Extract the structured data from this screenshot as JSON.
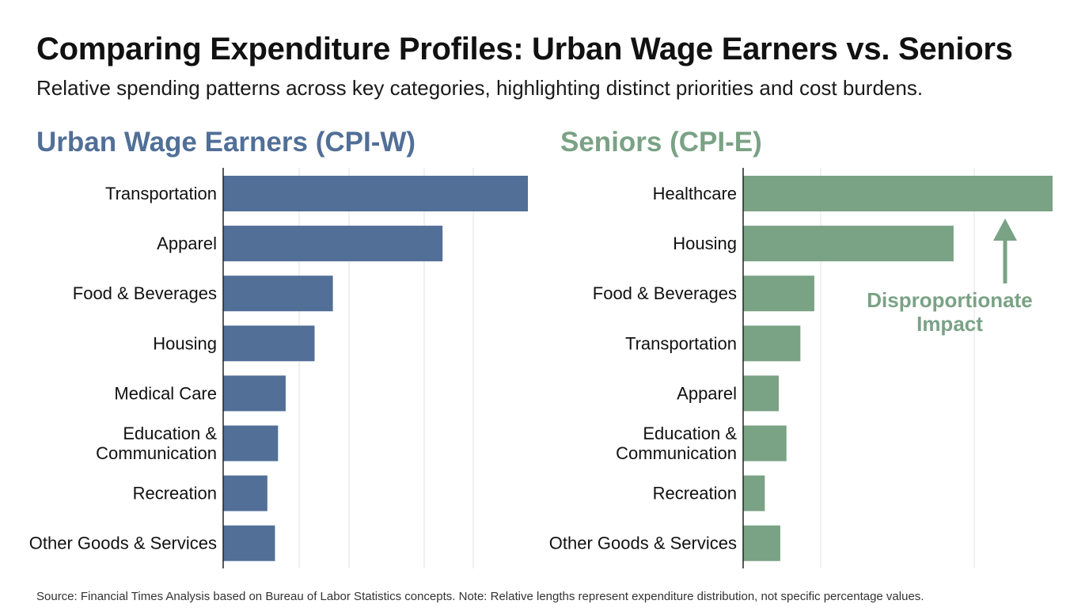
{
  "title": "Comparing Expenditure Profiles: Urban Wage Earners vs. Seniors",
  "subtitle": "Relative spending patterns across key categories, highlighting distinct priorities and cost burdens.",
  "source": "Source: Financial Times Analysis based on Bureau of Labor Statistics concepts. Note: Relative lengths represent expenditure distribution, not specific percentage values.",
  "colors": {
    "cpi_w": "#516f97",
    "cpi_e": "#7aa285",
    "grid": "#e2e2e2",
    "axis": "#222222"
  },
  "annotation": {
    "line1": "Disproportionate",
    "line2": "Impact",
    "icon": "arrow-up-icon"
  },
  "chart_data": [
    {
      "type": "bar",
      "orientation": "horizontal",
      "title": "Urban Wage Earners (CPI-W)",
      "categories": [
        "Transportation",
        "Apparel",
        "Food & Beverages",
        "Housing",
        "Medical Care",
        "Education & Communication",
        "Recreation",
        "Other Goods & Services"
      ],
      "values": [
        100,
        72,
        36,
        30,
        20.5,
        18,
        14.5,
        17
      ],
      "xlim": [
        0,
        100
      ],
      "grid": true,
      "tick_labels_shown": false
    },
    {
      "type": "bar",
      "orientation": "horizontal",
      "title": "Seniors (CPI-E)",
      "categories": [
        "Healthcare",
        "Housing",
        "Food & Beverages",
        "Transportation",
        "Apparel",
        "Education & Communication",
        "Recreation",
        "Other Goods & Services"
      ],
      "values": [
        100,
        68,
        23,
        18.5,
        11.5,
        14,
        7,
        12
      ],
      "xlim": [
        0,
        100
      ],
      "grid": true,
      "tick_labels_shown": false
    }
  ]
}
